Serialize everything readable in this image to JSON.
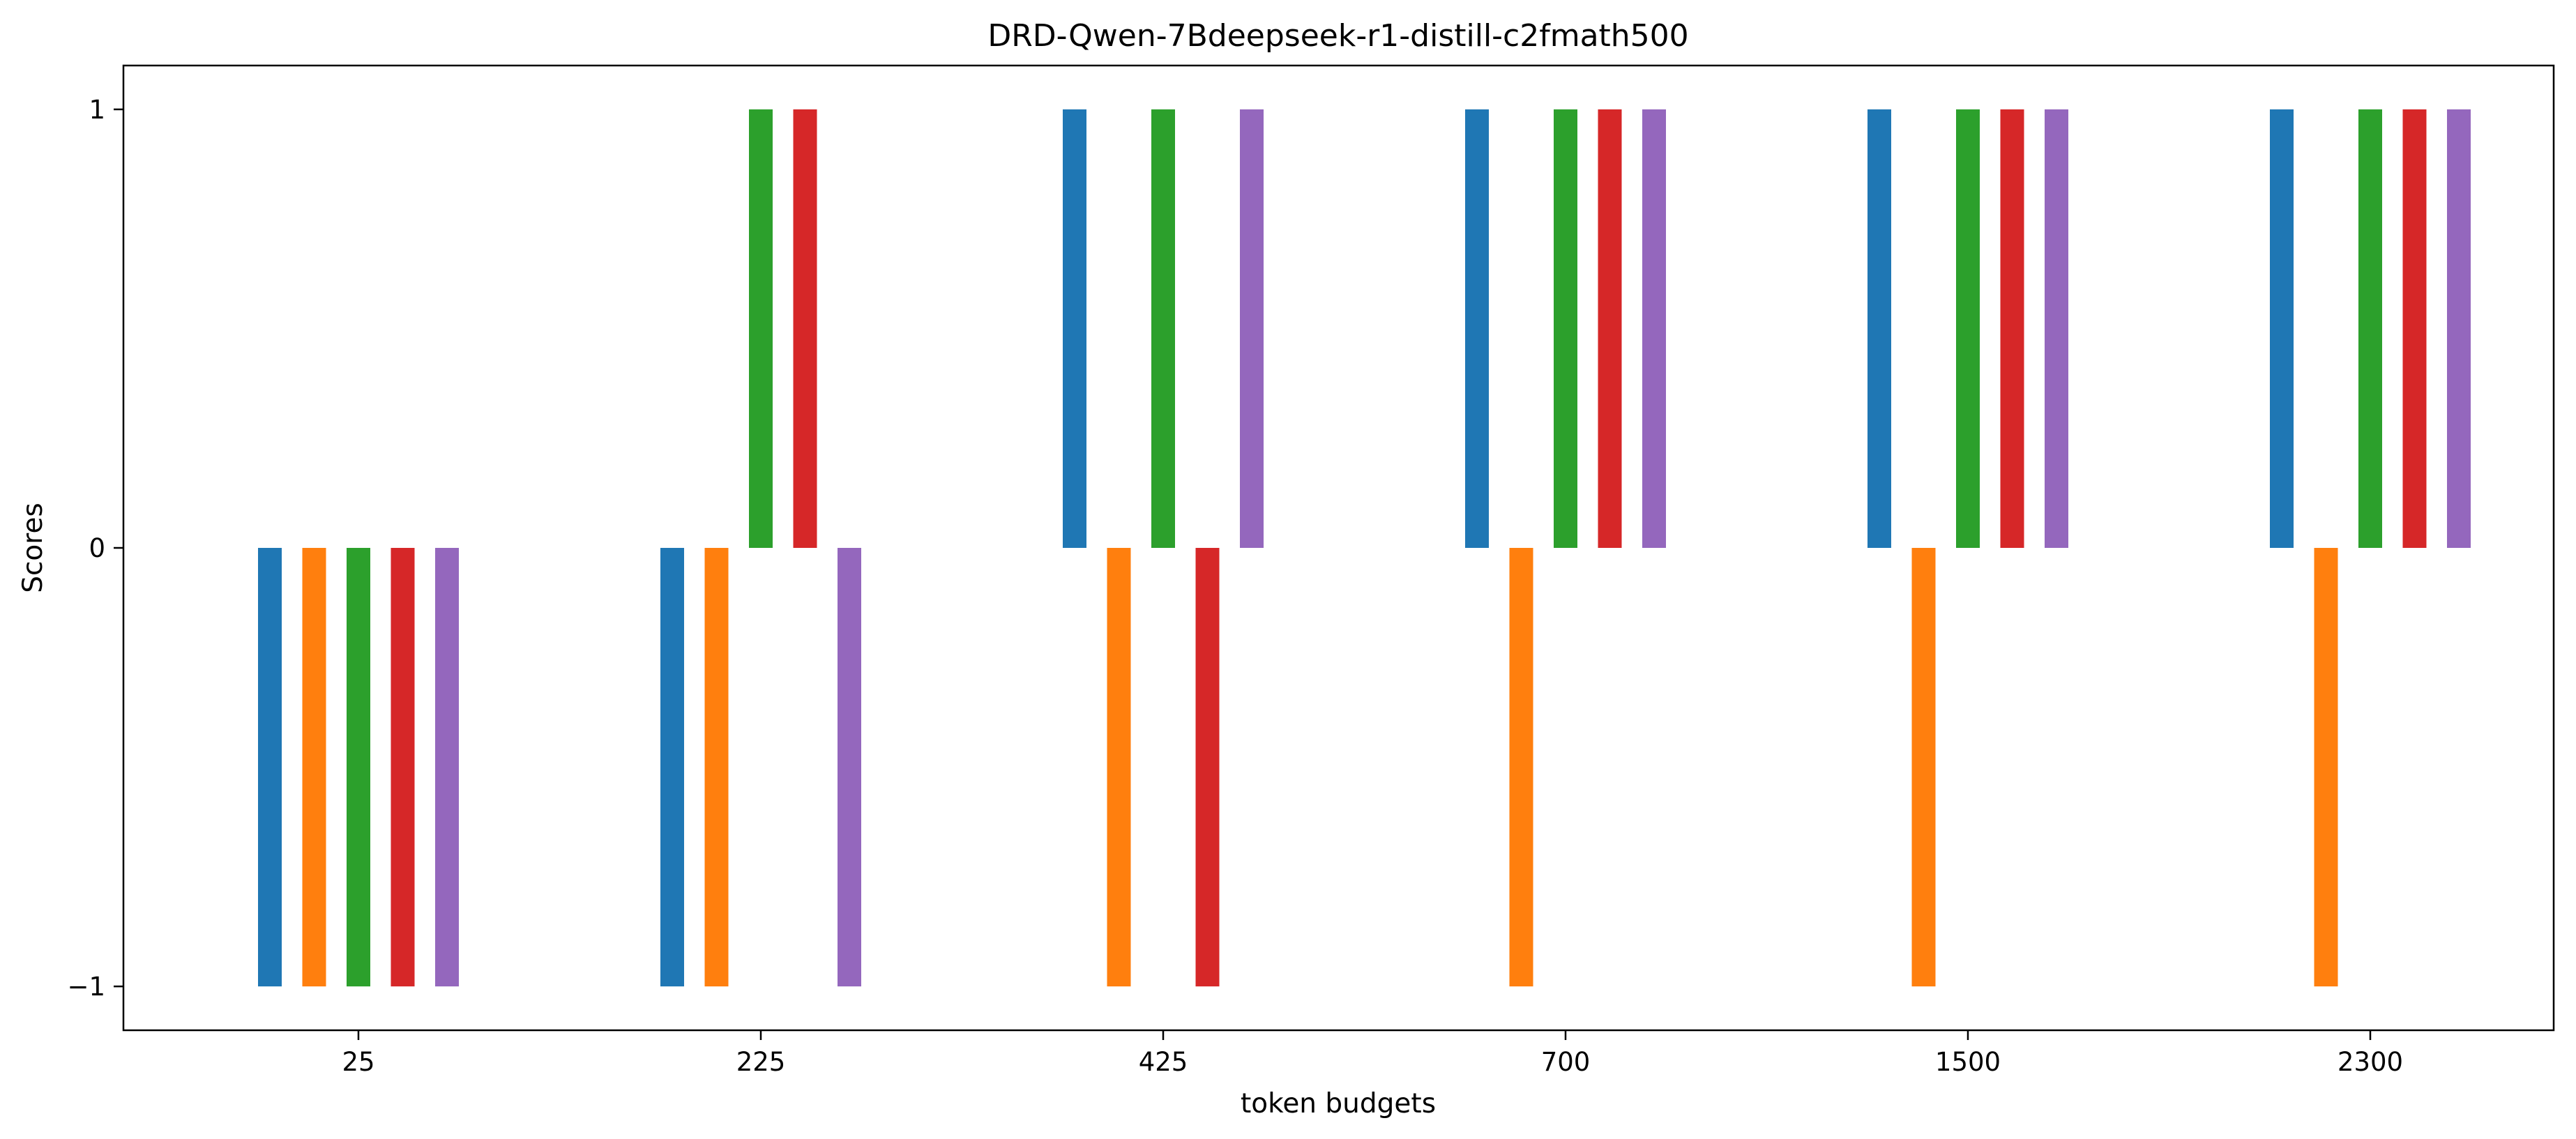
{
  "chart_data": {
    "type": "bar",
    "title": "DRD-Qwen-7Bdeepseek-r1-distill-c2fmath500",
    "xlabel": "token budgets",
    "ylabel": "Scores",
    "categories": [
      "25",
      "225",
      "425",
      "700",
      "1500",
      "2300"
    ],
    "ylim": [
      -1.1,
      1.1
    ],
    "yticks": [
      {
        "value": -1,
        "label": "−1"
      },
      {
        "value": 0,
        "label": "0"
      },
      {
        "value": 1,
        "label": "1"
      }
    ],
    "grid": false,
    "legend": "none",
    "series": [
      {
        "color": "#1f77b4",
        "values": [
          -1,
          -1,
          1,
          1,
          1,
          1
        ]
      },
      {
        "color": "#ff7f0e",
        "values": [
          -1,
          -1,
          -1,
          -1,
          -1,
          -1
        ]
      },
      {
        "color": "#2ca02c",
        "values": [
          -1,
          1,
          1,
          1,
          1,
          1
        ]
      },
      {
        "color": "#d62728",
        "values": [
          -1,
          1,
          -1,
          1,
          1,
          1
        ]
      },
      {
        "color": "#9467bd",
        "values": [
          -1,
          -1,
          1,
          1,
          1,
          1
        ]
      }
    ]
  }
}
